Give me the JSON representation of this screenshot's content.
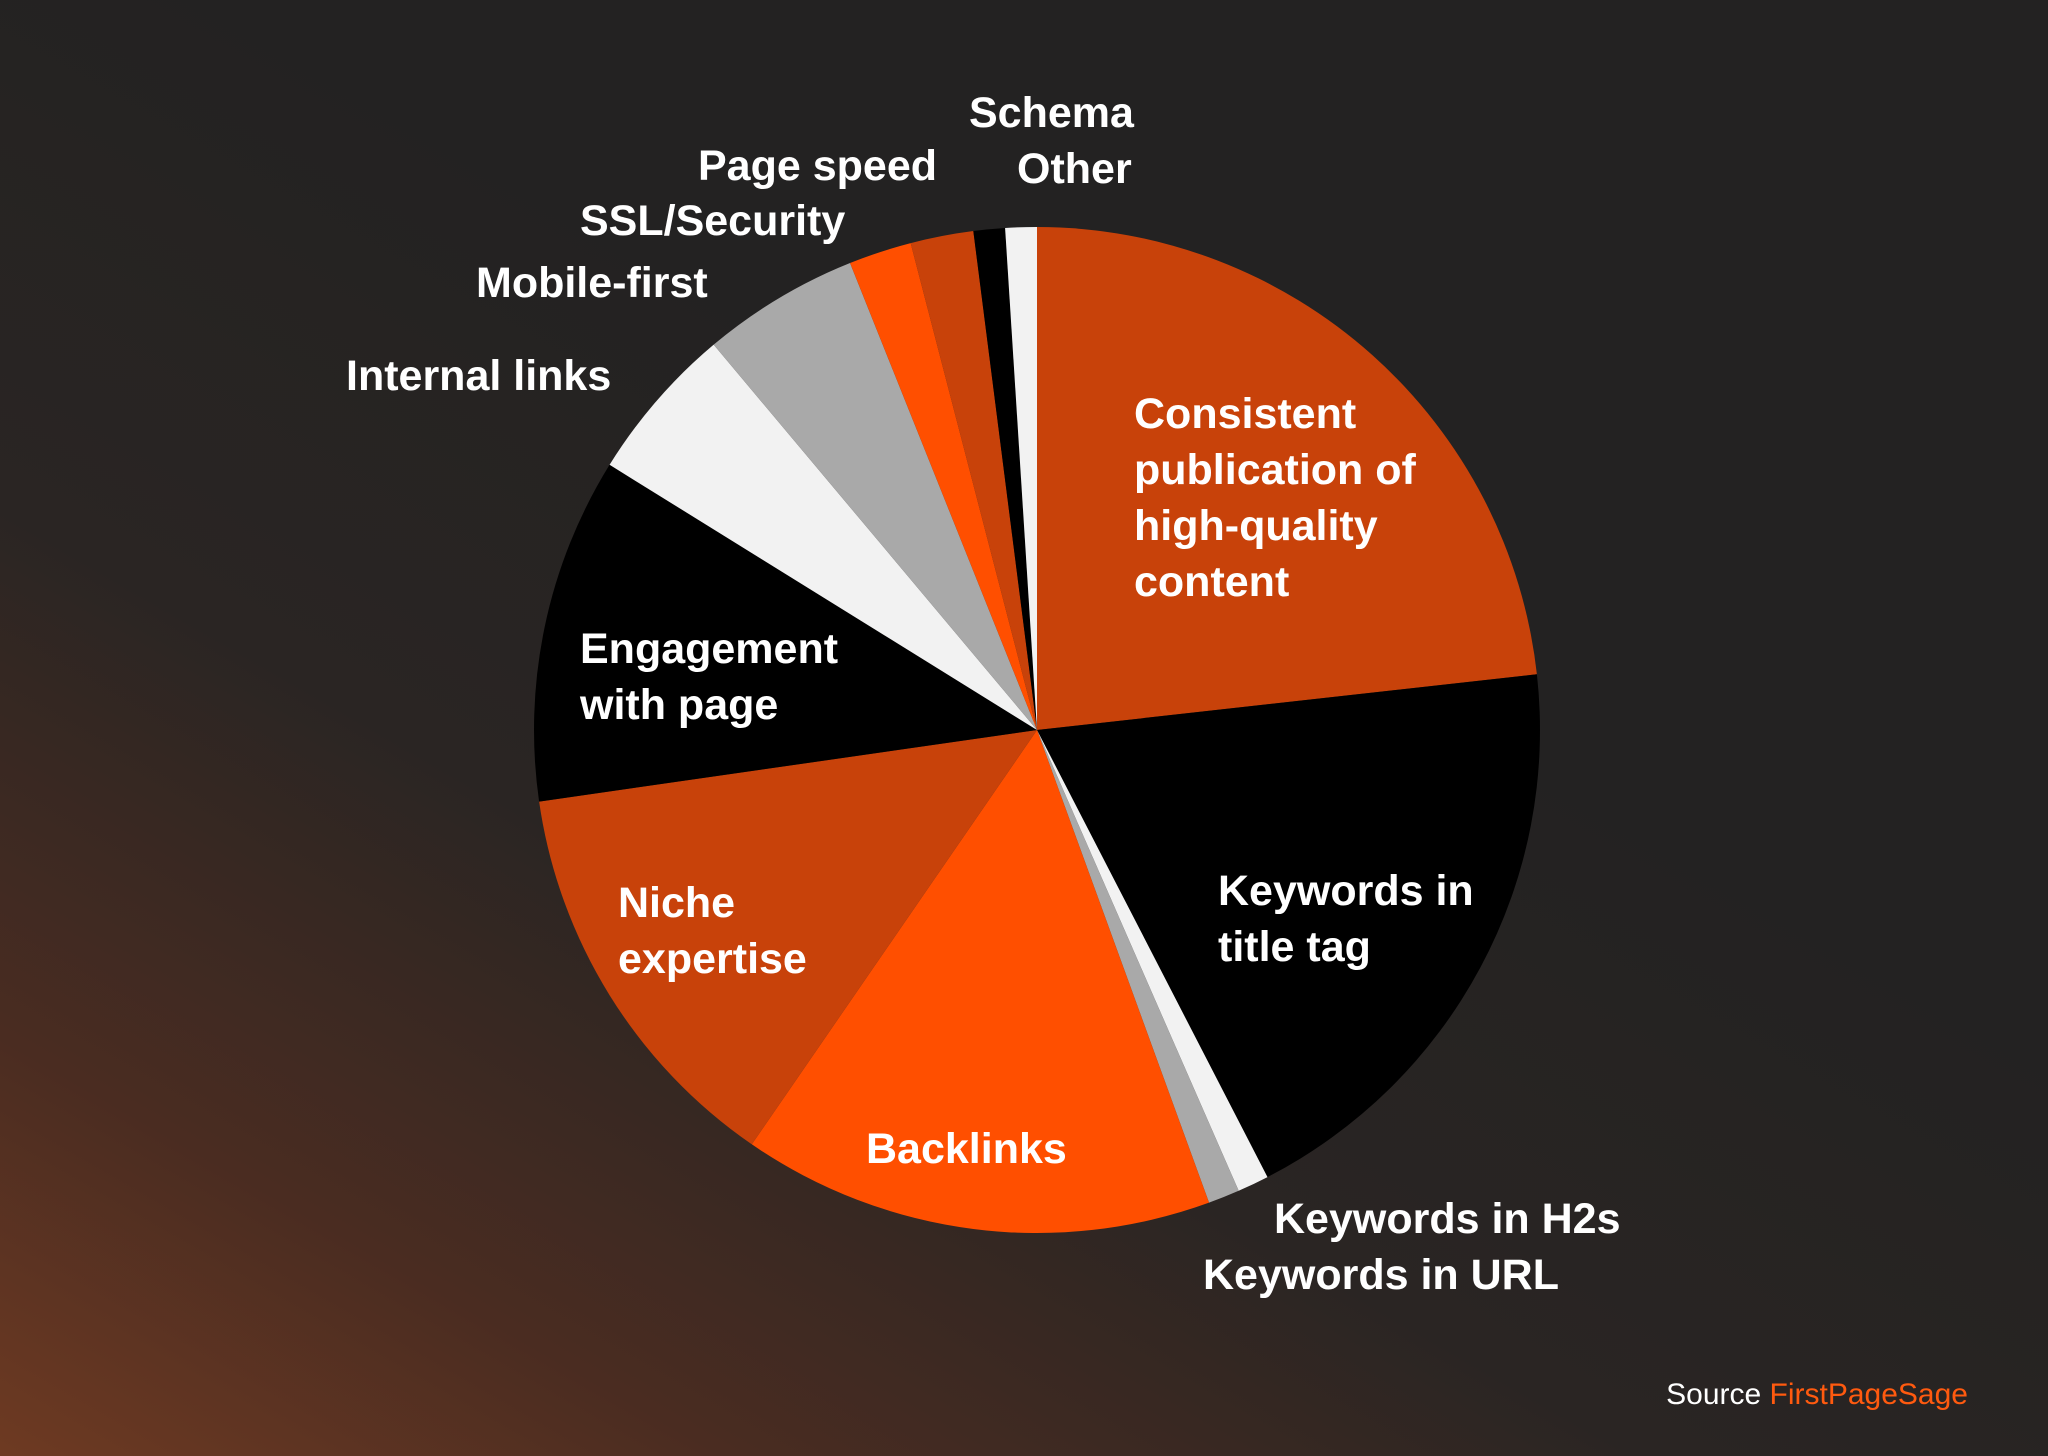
{
  "chart_data": {
    "type": "pie",
    "start_angle_deg": 0,
    "direction": "clockwise",
    "legend": "none",
    "slices": [
      {
        "label": "Consistent publication of high-quality content",
        "label_lines": [
          "Consistent",
          "publication of",
          "high-quality",
          "content"
        ],
        "value": 23,
        "color": "#c8420a",
        "label_placement": "inside"
      },
      {
        "label": "Keywords in title tag",
        "label_lines": [
          "Keywords in",
          "title tag"
        ],
        "value": 19,
        "color": "#000000",
        "label_placement": "inside"
      },
      {
        "label": "Keywords in H2s",
        "label_lines": [
          "Keywords in H2s"
        ],
        "value": 1,
        "color": "#f2f2f2",
        "label_placement": "outside"
      },
      {
        "label": "Keywords in URL",
        "label_lines": [
          "Keywords in URL"
        ],
        "value": 1,
        "color": "#a9a9a9",
        "label_placement": "outside"
      },
      {
        "label": "Backlinks",
        "label_lines": [
          "Backlinks"
        ],
        "value": 15,
        "color": "#ff4f00",
        "label_placement": "inside"
      },
      {
        "label": "Niche expertise",
        "label_lines": [
          "Niche",
          "expertise"
        ],
        "value": 13,
        "color": "#c8420a",
        "label_placement": "inside"
      },
      {
        "label": "Engagement with page",
        "label_lines": [
          "Engagement",
          "with page"
        ],
        "value": 11,
        "color": "#000000",
        "label_placement": "inside"
      },
      {
        "label": "Internal links",
        "label_lines": [
          "Internal links"
        ],
        "value": 5,
        "color": "#f2f2f2",
        "label_placement": "outside"
      },
      {
        "label": "Mobile-first",
        "label_lines": [
          "Mobile-first"
        ],
        "value": 5,
        "color": "#a9a9a9",
        "label_placement": "outside"
      },
      {
        "label": "SSL/Security",
        "label_lines": [
          "SSL/Security"
        ],
        "value": 2,
        "color": "#ff4f00",
        "label_placement": "outside"
      },
      {
        "label": "Page speed",
        "label_lines": [
          "Page speed"
        ],
        "value": 2,
        "color": "#c8420a",
        "label_placement": "outside"
      },
      {
        "label": "Schema",
        "label_lines": [
          "Schema"
        ],
        "value": 1,
        "color": "#000000",
        "label_placement": "outside"
      },
      {
        "label": "Other",
        "label_lines": [
          "Other"
        ],
        "value": 1,
        "color": "#f2f2f2",
        "label_placement": "outside"
      }
    ]
  },
  "source": {
    "prefix": "Source",
    "name": "FirstPageSage"
  }
}
